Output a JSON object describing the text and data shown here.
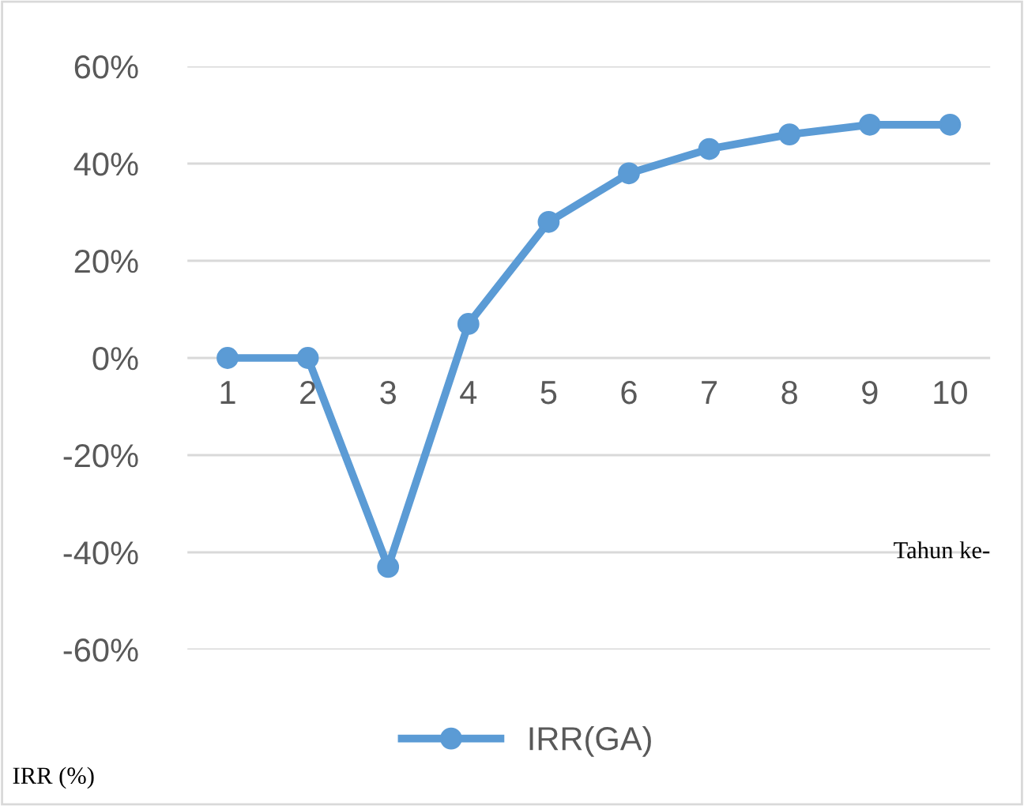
{
  "chart_data": {
    "type": "line",
    "categories": [
      "1",
      "2",
      "3",
      "4",
      "5",
      "6",
      "7",
      "8",
      "9",
      "10"
    ],
    "series": [
      {
        "name": "IRR(GA)",
        "color": "#5b9bd5",
        "values": [
          0,
          0,
          -43,
          7,
          28,
          38,
          43,
          46,
          48,
          48
        ]
      }
    ],
    "ylim": [
      -60,
      60
    ],
    "yticks": [
      {
        "value": -60,
        "label": "-60%"
      },
      {
        "value": -40,
        "label": "-40%"
      },
      {
        "value": -20,
        "label": "-20%"
      },
      {
        "value": 0,
        "label": "0%"
      },
      {
        "value": 20,
        "label": "20%"
      },
      {
        "value": 40,
        "label": "40%"
      },
      {
        "value": 60,
        "label": "60%"
      }
    ],
    "xlabel": "Tahun ke-",
    "ylabel": "IRR (%)",
    "grid": "y",
    "legend": "bottom",
    "marker": "circle",
    "line_style": "solid"
  }
}
